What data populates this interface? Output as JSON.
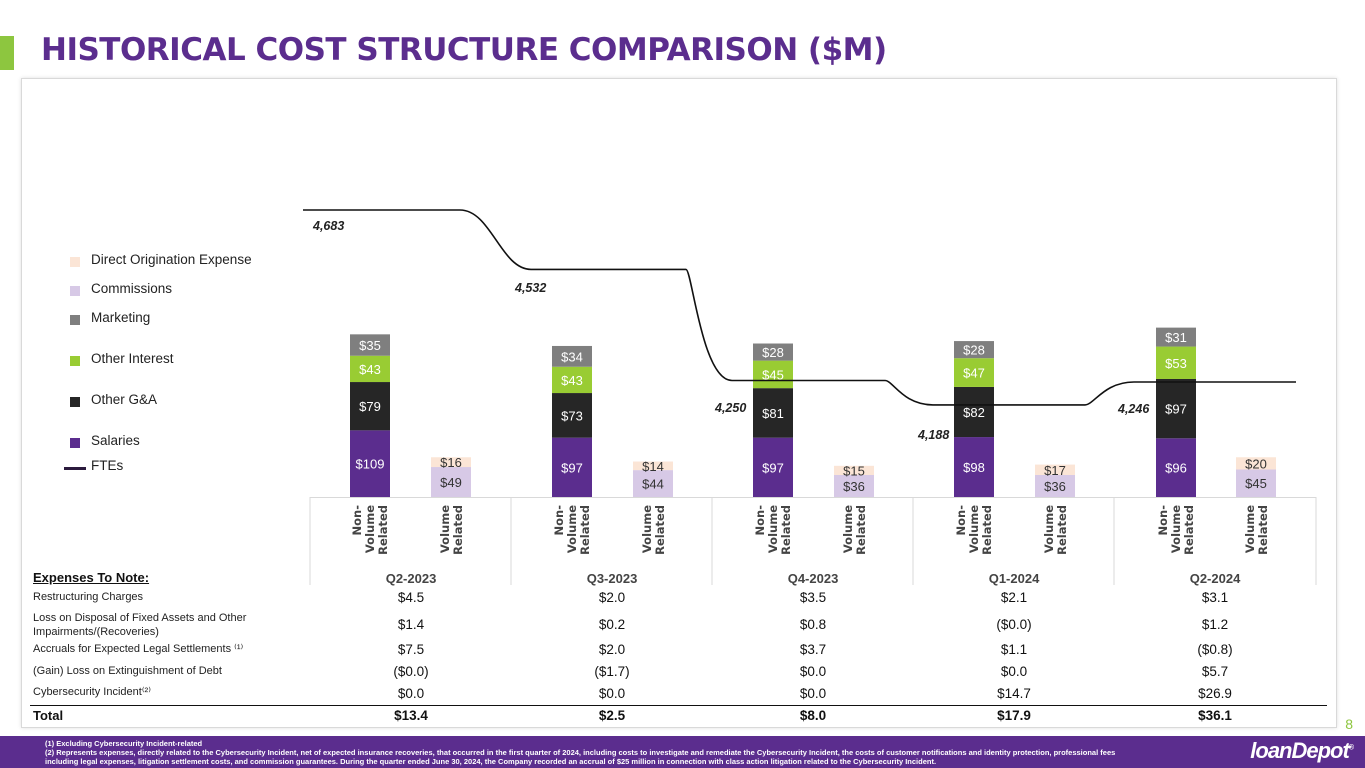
{
  "title": "HISTORICAL COST STRUCTURE COMPARISON ($M)",
  "page_number": "8",
  "legend": [
    {
      "label": "Direct Origination Expense",
      "color": "#fbe5d6"
    },
    {
      "label": "Commissions",
      "color": "#d7c9e6"
    },
    {
      "label": "Marketing",
      "color": "#7f7f7f"
    },
    {
      "label": "Other Interest",
      "color": "#99cc33"
    },
    {
      "label": "Other G&A",
      "color": "#262626"
    },
    {
      "label": "Salaries",
      "color": "#5b2d8e"
    },
    {
      "label": "FTEs",
      "color": "#2b1a3d"
    }
  ],
  "chart_data": {
    "type": "bar",
    "stacked": true,
    "categories": [
      "Q2-2023",
      "Q3-2023",
      "Q4-2023",
      "Q1-2024",
      "Q2-2024"
    ],
    "bar_labels": [
      "Non-Volume Related",
      "Volume Related"
    ],
    "bar_label_lines": [
      "Non-",
      "Volume",
      "Related",
      "Volume",
      "Related"
    ],
    "non_volume_related": [
      {
        "name": "Salaries",
        "values": [
          109,
          97,
          97,
          98,
          96
        ],
        "labels": [
          "$109",
          "$97",
          "$97",
          "$98",
          "$96"
        ]
      },
      {
        "name": "Other G&A",
        "values": [
          79,
          73,
          81,
          82,
          97
        ],
        "labels": [
          "$79",
          "$73",
          "$81",
          "$82",
          "$97"
        ]
      },
      {
        "name": "Other Interest",
        "values": [
          43,
          43,
          45,
          47,
          53
        ],
        "labels": [
          "$43",
          "$43",
          "$45",
          "$47",
          "$53"
        ]
      },
      {
        "name": "Marketing",
        "values": [
          35,
          34,
          28,
          28,
          31
        ],
        "labels": [
          "$35",
          "$34",
          "$28",
          "$28",
          "$31"
        ]
      }
    ],
    "volume_related": [
      {
        "name": "Commissions",
        "values": [
          49,
          44,
          36,
          36,
          45
        ],
        "labels": [
          "$49",
          "$44",
          "$36",
          "$36",
          "$45"
        ]
      },
      {
        "name": "Direct Origination Expense",
        "values": [
          16,
          14,
          15,
          17,
          20
        ],
        "labels": [
          "$16",
          "$14",
          "$15",
          "$17",
          "$20"
        ]
      }
    ],
    "fte_series": {
      "name": "FTEs",
      "values": [
        4683,
        4532,
        4250,
        4188,
        4246
      ],
      "labels": [
        "4,683",
        "4,532",
        "4,250",
        "4,188",
        "4,246"
      ]
    }
  },
  "notes": {
    "title": "Expenses To Note:",
    "quarters": [
      "Q2-2023",
      "Q3-2023",
      "Q4-2023",
      "Q1-2024",
      "Q2-2024"
    ],
    "rows": [
      {
        "label": "Restructuring Charges",
        "values": [
          "$4.5",
          "$2.0",
          "$3.5",
          "$2.1",
          "$3.1"
        ]
      },
      {
        "label": "Loss on Disposal of Fixed Assets and Other",
        "label2": "Impairments/(Recoveries)",
        "values": [
          "$1.4",
          "$0.2",
          "$0.8",
          "($0.0)",
          "$1.2"
        ]
      },
      {
        "label": "Accruals for Expected Legal Settlements ⁽¹⁾",
        "values": [
          "$7.5",
          "$2.0",
          "$3.7",
          "$1.1",
          "($0.8)"
        ]
      },
      {
        "label": "(Gain) Loss on Extinguishment of Debt",
        "values": [
          "($0.0)",
          "($1.7)",
          "$0.0",
          "$0.0",
          "$5.7"
        ]
      },
      {
        "label": "Cybersecurity Incident⁽²⁾",
        "values": [
          "$0.0",
          "$0.0",
          "$0.0",
          "$14.7",
          "$26.9"
        ]
      }
    ],
    "total": {
      "label": "Total",
      "values": [
        "$13.4",
        "$2.5",
        "$8.0",
        "$17.9",
        "$36.1"
      ]
    }
  },
  "footnotes": [
    "(1)    Excluding Cybersecurity Incident-related",
    "(2) Represents expenses, directly related to the Cybersecurity Incident, net of expected insurance recoveries, that occurred in the first quarter of 2024, including costs to investigate and remediate the Cybersecurity Incident, the costs of customer notifications and identity protection, professional fees",
    "including legal expenses, litigation settlement costs, and commission guarantees.  During the quarter ended June 30, 2024, the Company recorded an accrual of $25 million in connection with class action litigation related to the Cybersecurity Incident."
  ],
  "logo": {
    "text": "loanDepot",
    "mark": "®"
  }
}
